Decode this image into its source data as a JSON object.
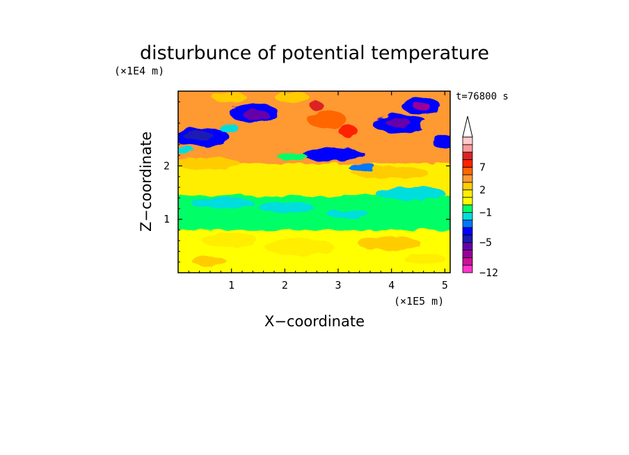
{
  "chart_data": {
    "type": "heatmap",
    "title": "disturbunce of potential temperature",
    "time_label": "t=76800 s",
    "xlabel": "X−coordinate",
    "ylabel": "Z−coordinate",
    "x_unit": "(×1E5 m)",
    "y_unit": "(×1E4 m)",
    "xlim": [
      0,
      5.1
    ],
    "ylim": [
      0,
      3.4
    ],
    "x_ticks": [
      1,
      2,
      3,
      4,
      5
    ],
    "y_ticks": [
      1,
      2
    ],
    "colorbar": {
      "levels": [
        -12,
        -10,
        -8,
        -6,
        -5,
        -4,
        -3,
        -2,
        -1,
        0,
        1,
        2,
        3,
        5,
        7,
        9,
        11,
        13
      ],
      "tick_labels": [
        "−12",
        "−5",
        "−1",
        "2",
        "7"
      ],
      "colors": [
        "#ff33cc",
        "#cc1199",
        "#990099",
        "#6600aa",
        "#1a1ab3",
        "#0000ff",
        "#0077ff",
        "#00dddd",
        "#00ff66",
        "#ffff00",
        "#ffee00",
        "#ffcc00",
        "#ff9933",
        "#ff6600",
        "#ff2200",
        "#dd2222",
        "#ff9999",
        "#ffcccc"
      ],
      "extend_max": true
    },
    "layers": [
      {
        "z_range": [
          0.0,
          0.85
        ],
        "value": 0.5,
        "description": "yellow near-surface layer"
      },
      {
        "z_range": [
          0.85,
          1.5
        ],
        "value": -0.5,
        "description": "green/cyan layer"
      },
      {
        "z_range": [
          1.5,
          2.1
        ],
        "value": 1.5,
        "description": "yellow/orange layer"
      },
      {
        "z_range": [
          2.1,
          3.4
        ],
        "value": 4,
        "description": "wave pattern with orange/red maxima and blue/purple minima"
      }
    ],
    "grid": false,
    "legend": "colorbar right"
  }
}
